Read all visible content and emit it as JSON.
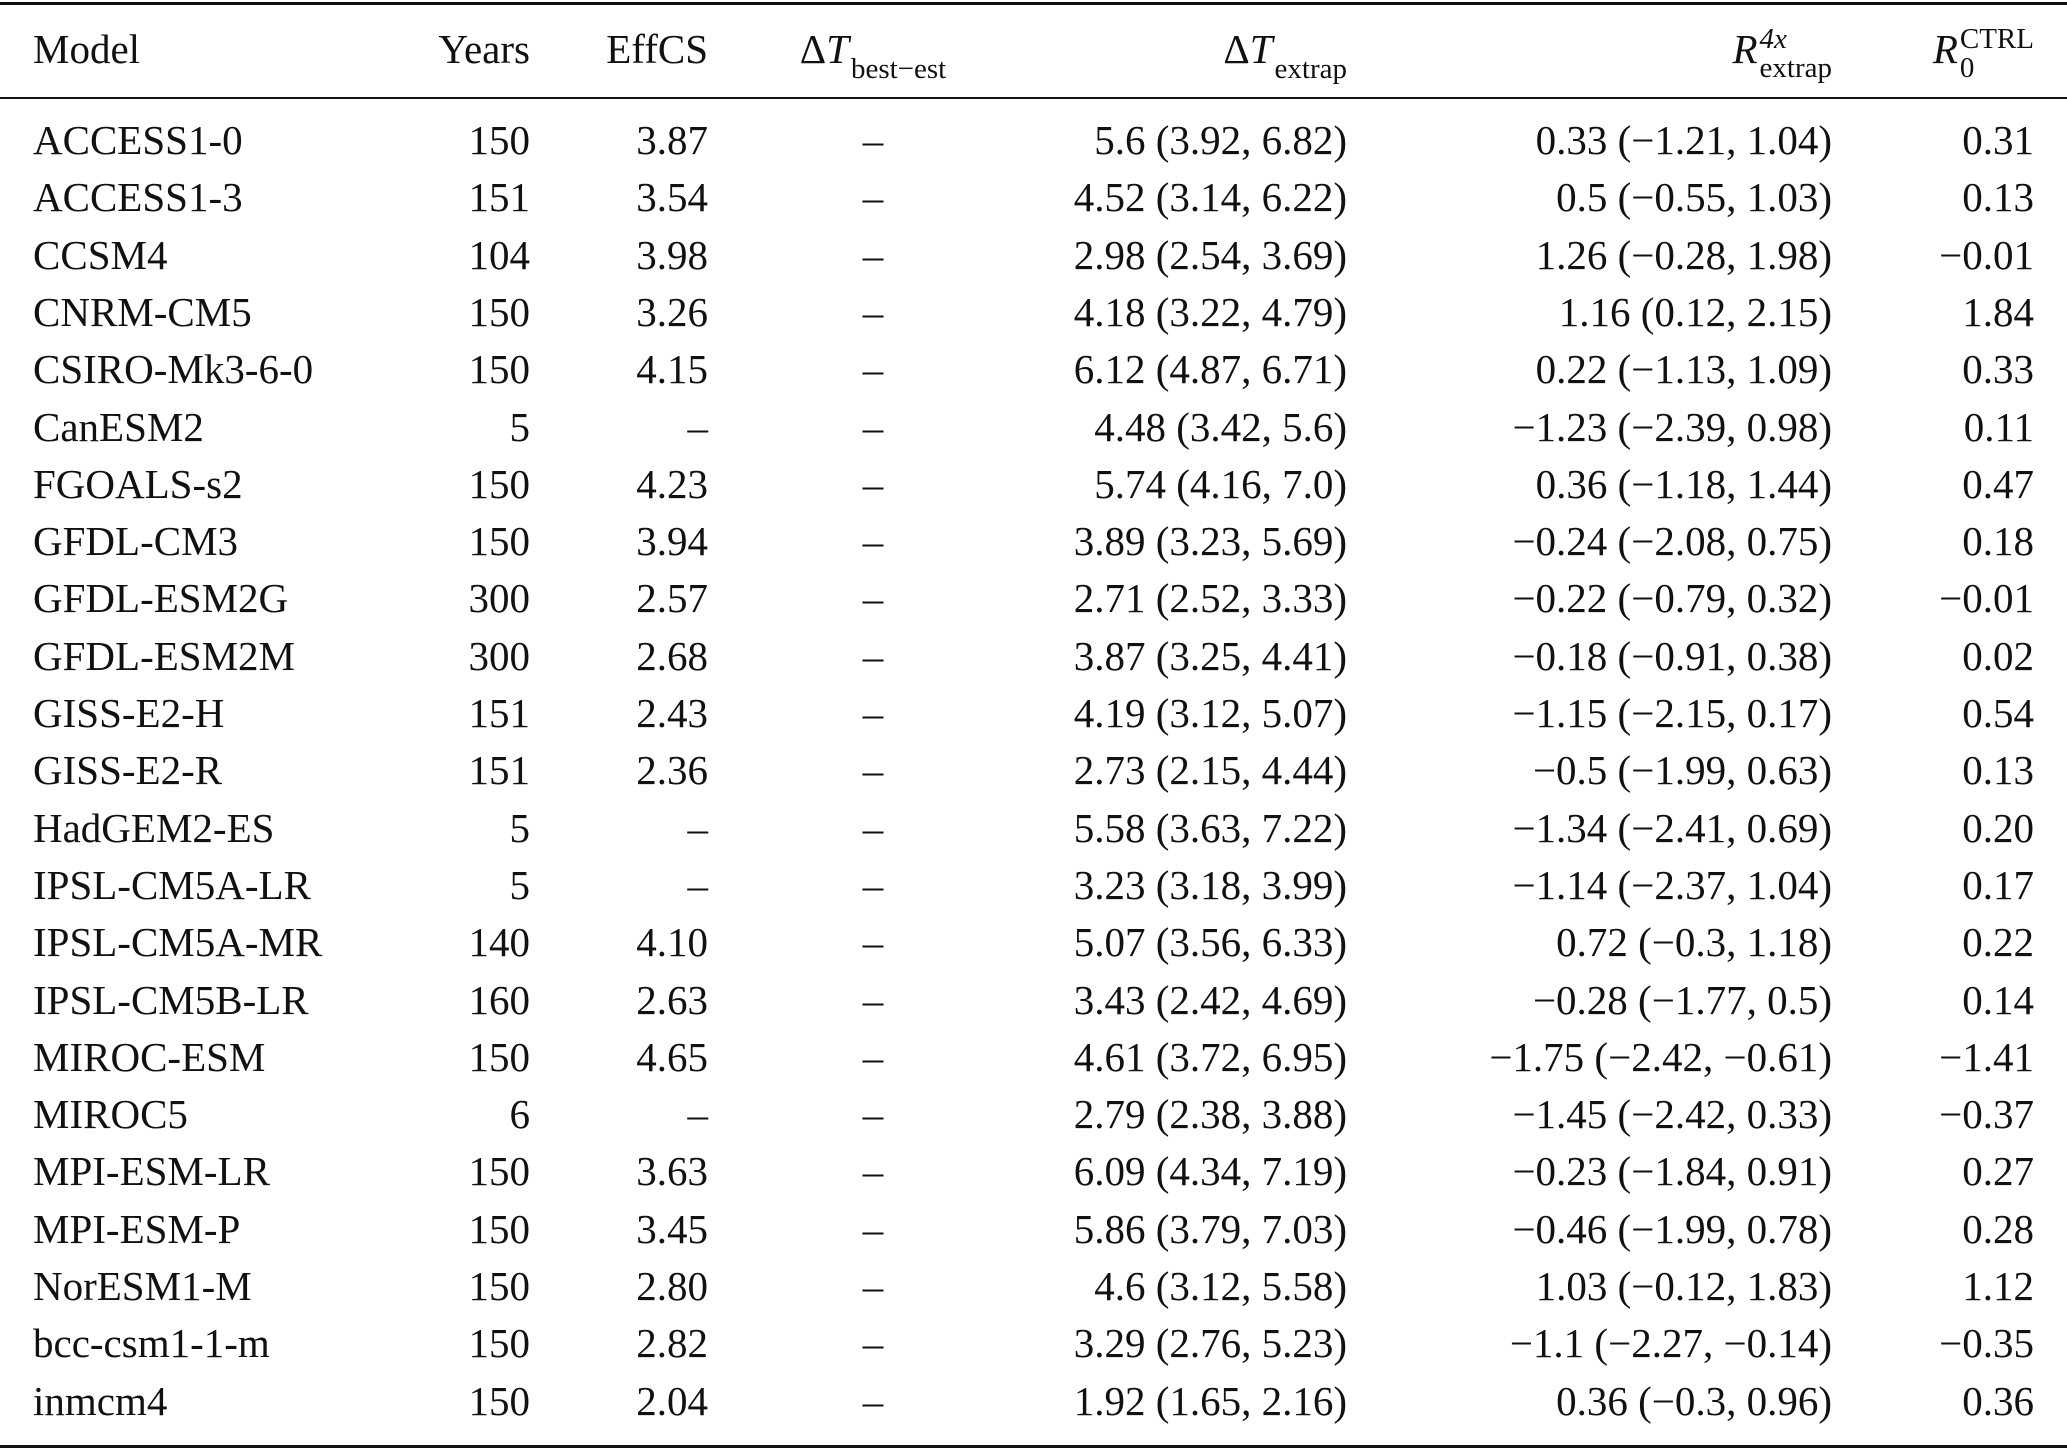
{
  "table": {
    "header": [
      {
        "text": "Model"
      },
      {
        "text": "Years"
      },
      {
        "text": "EffCS"
      },
      {
        "prefix": "Δ",
        "symbol": "T",
        "sub": "best−est"
      },
      {
        "prefix": "Δ",
        "symbol": "T",
        "sub": "extrap"
      },
      {
        "symbol": "R",
        "sup": "4x",
        "sub": "extrap"
      },
      {
        "symbol": "R",
        "sup": "CTRL",
        "sub": "0"
      }
    ],
    "rows": [
      [
        "ACCESS1-0",
        "150",
        "3.87",
        "–",
        "5.6 (3.92, 6.82)",
        "0.33 (−1.21, 1.04)",
        "0.31"
      ],
      [
        "ACCESS1-3",
        "151",
        "3.54",
        "–",
        "4.52 (3.14, 6.22)",
        "0.5 (−0.55, 1.03)",
        "0.13"
      ],
      [
        "CCSM4",
        "104",
        "3.98",
        "–",
        "2.98 (2.54, 3.69)",
        "1.26 (−0.28, 1.98)",
        "−0.01"
      ],
      [
        "CNRM-CM5",
        "150",
        "3.26",
        "–",
        "4.18 (3.22, 4.79)",
        "1.16 (0.12, 2.15)",
        "1.84"
      ],
      [
        "CSIRO-Mk3-6-0",
        "150",
        "4.15",
        "–",
        "6.12 (4.87, 6.71)",
        "0.22 (−1.13, 1.09)",
        "0.33"
      ],
      [
        "CanESM2",
        "5",
        "–",
        "–",
        "4.48 (3.42, 5.6)",
        "−1.23 (−2.39, 0.98)",
        "0.11"
      ],
      [
        "FGOALS-s2",
        "150",
        "4.23",
        "–",
        "5.74 (4.16, 7.0)",
        "0.36 (−1.18, 1.44)",
        "0.47"
      ],
      [
        "GFDL-CM3",
        "150",
        "3.94",
        "–",
        "3.89 (3.23, 5.69)",
        "−0.24 (−2.08, 0.75)",
        "0.18"
      ],
      [
        "GFDL-ESM2G",
        "300",
        "2.57",
        "–",
        "2.71 (2.52, 3.33)",
        "−0.22 (−0.79, 0.32)",
        "−0.01"
      ],
      [
        "GFDL-ESM2M",
        "300",
        "2.68",
        "–",
        "3.87 (3.25, 4.41)",
        "−0.18 (−0.91, 0.38)",
        "0.02"
      ],
      [
        "GISS-E2-H",
        "151",
        "2.43",
        "–",
        "4.19 (3.12, 5.07)",
        "−1.15 (−2.15, 0.17)",
        "0.54"
      ],
      [
        "GISS-E2-R",
        "151",
        "2.36",
        "–",
        "2.73 (2.15, 4.44)",
        "−0.5 (−1.99, 0.63)",
        "0.13"
      ],
      [
        "HadGEM2-ES",
        "5",
        "–",
        "–",
        "5.58 (3.63, 7.22)",
        "−1.34 (−2.41, 0.69)",
        "0.20"
      ],
      [
        "IPSL-CM5A-LR",
        "5",
        "–",
        "–",
        "3.23 (3.18, 3.99)",
        "−1.14 (−2.37, 1.04)",
        "0.17"
      ],
      [
        "IPSL-CM5A-MR",
        "140",
        "4.10",
        "–",
        "5.07 (3.56, 6.33)",
        "0.72 (−0.3, 1.18)",
        "0.22"
      ],
      [
        "IPSL-CM5B-LR",
        "160",
        "2.63",
        "–",
        "3.43 (2.42, 4.69)",
        "−0.28 (−1.77, 0.5)",
        "0.14"
      ],
      [
        "MIROC-ESM",
        "150",
        "4.65",
        "–",
        "4.61 (3.72, 6.95)",
        "−1.75 (−2.42, −0.61)",
        "−1.41"
      ],
      [
        "MIROC5",
        "6",
        "–",
        "–",
        "2.79 (2.38, 3.88)",
        "−1.45 (−2.42, 0.33)",
        "−0.37"
      ],
      [
        "MPI-ESM-LR",
        "150",
        "3.63",
        "–",
        "6.09 (4.34, 7.19)",
        "−0.23 (−1.84, 0.91)",
        "0.27"
      ],
      [
        "MPI-ESM-P",
        "150",
        "3.45",
        "–",
        "5.86 (3.79, 7.03)",
        "−0.46 (−1.99, 0.78)",
        "0.28"
      ],
      [
        "NorESM1-M",
        "150",
        "2.80",
        "–",
        "4.6 (3.12, 5.58)",
        "1.03 (−0.12, 1.83)",
        "1.12"
      ],
      [
        "bcc-csm1-1-m",
        "150",
        "2.82",
        "–",
        "3.29 (2.76, 5.23)",
        "−1.1 (−2.27, −0.14)",
        "−0.35"
      ],
      [
        "inmcm4",
        "150",
        "2.04",
        "–",
        "1.92 (1.65, 2.16)",
        "0.36 (−0.3, 0.96)",
        "0.36"
      ]
    ]
  }
}
